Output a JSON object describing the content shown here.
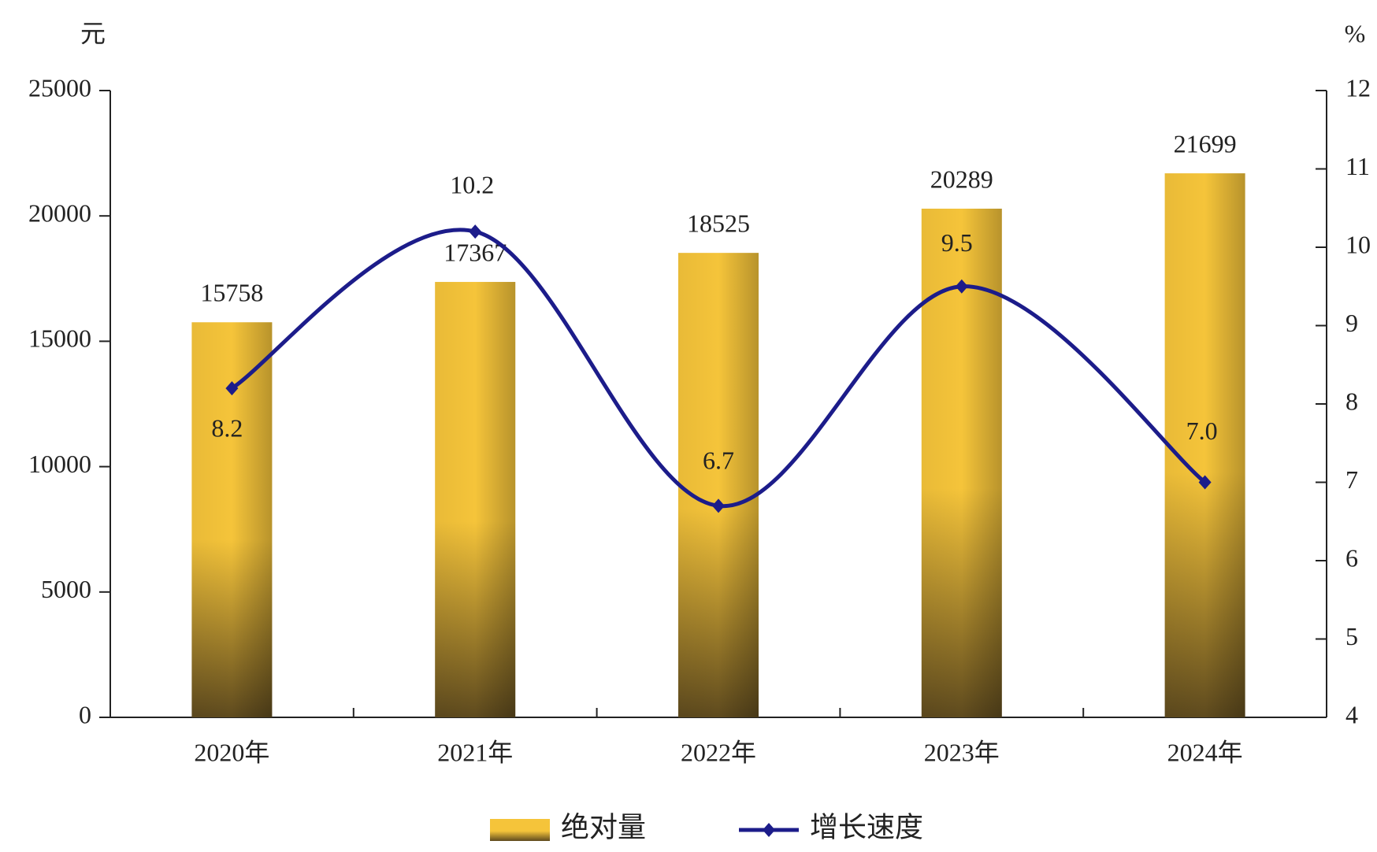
{
  "chart_data": {
    "type": "bar",
    "y_unit": "元",
    "y2_unit": "%",
    "categories": [
      "2020年",
      "2021年",
      "2022年",
      "2023年",
      "2024年"
    ],
    "series": [
      {
        "name": "绝对量",
        "type": "bar",
        "color": "#f5c43a",
        "values": [
          15758,
          17367,
          18525,
          20289,
          21699
        ]
      },
      {
        "name": "增长速度",
        "type": "line",
        "axis": "y2",
        "color": "#1c1c8a",
        "values": [
          8.2,
          10.2,
          6.7,
          9.5,
          7.0
        ],
        "value_labels": [
          "8.2",
          "10.2",
          "6.7",
          "9.5",
          "7.0"
        ]
      }
    ],
    "ylim": [
      0,
      25000
    ],
    "yticks": [
      0,
      5000,
      10000,
      15000,
      20000,
      25000
    ],
    "y2lim": [
      4,
      12
    ],
    "y2ticks": [
      4,
      5,
      6,
      7,
      8,
      9,
      10,
      11,
      12
    ],
    "legend": "bottom"
  }
}
